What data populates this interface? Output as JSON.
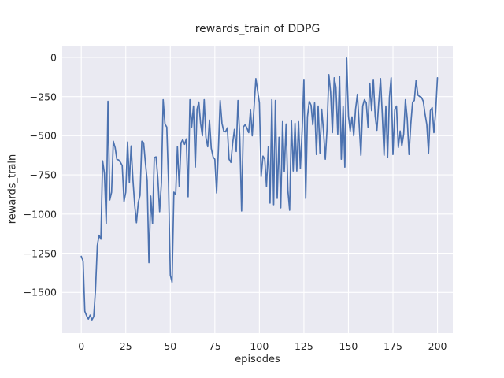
{
  "figure": {
    "title": "rewards_train of DDPG",
    "xlabel": "episodes",
    "ylabel": "rewards_train"
  },
  "colors": {
    "figure_background": "#ffffff",
    "axes_background": "#eaeaf2",
    "gridline": "#ffffff",
    "line": "#4c72b0",
    "text": "#262626"
  },
  "chart_data": {
    "type": "line",
    "title": "rewards_train of DDPG",
    "xlabel": "episodes",
    "ylabel": "rewards_train",
    "legend": "none",
    "grid": "on",
    "xlim": [
      -10.7,
      208.6
    ],
    "ylim": [
      -1760,
      75
    ],
    "xticks": [
      0,
      25,
      50,
      75,
      100,
      125,
      150,
      175,
      200
    ],
    "xtick_labels": [
      "0",
      "25",
      "50",
      "75",
      "100",
      "125",
      "150",
      "175",
      "200"
    ],
    "yticks": [
      0,
      -250,
      -500,
      -750,
      -1000,
      -1250,
      -1500
    ],
    "ytick_labels": [
      "0",
      "−250",
      "−500",
      "−750",
      "−1000",
      "−1250",
      "−1500"
    ],
    "x_start": 0,
    "x_step": 1,
    "series": [
      {
        "name": "rewards_train",
        "values": [
          -1270,
          -1300,
          -1620,
          -1650,
          -1670,
          -1645,
          -1675,
          -1655,
          -1480,
          -1200,
          -1135,
          -1160,
          -660,
          -740,
          -1060,
          -280,
          -910,
          -860,
          -535,
          -575,
          -650,
          -655,
          -670,
          -690,
          -920,
          -860,
          -540,
          -800,
          -565,
          -780,
          -945,
          -1055,
          -925,
          -880,
          -535,
          -545,
          -670,
          -785,
          -1310,
          -885,
          -1060,
          -640,
          -635,
          -775,
          -985,
          -800,
          -270,
          -425,
          -445,
          -800,
          -1390,
          -1435,
          -860,
          -875,
          -570,
          -825,
          -545,
          -525,
          -555,
          -520,
          -890,
          -270,
          -445,
          -310,
          -700,
          -330,
          -285,
          -420,
          -500,
          -270,
          -510,
          -570,
          -400,
          -580,
          -635,
          -650,
          -865,
          -580,
          -275,
          -420,
          -470,
          -475,
          -450,
          -650,
          -670,
          -550,
          -460,
          -600,
          -275,
          -510,
          -980,
          -445,
          -430,
          -450,
          -480,
          -335,
          -500,
          -320,
          -135,
          -210,
          -290,
          -760,
          -630,
          -650,
          -825,
          -570,
          -930,
          -270,
          -940,
          -275,
          -900,
          -510,
          -960,
          -410,
          -730,
          -425,
          -850,
          -975,
          -405,
          -725,
          -420,
          -725,
          -410,
          -710,
          -460,
          -140,
          -900,
          -380,
          -280,
          -305,
          -430,
          -290,
          -620,
          -310,
          -610,
          -330,
          -470,
          -650,
          -455,
          -110,
          -220,
          -480,
          -130,
          -190,
          -490,
          -120,
          -650,
          -310,
          -700,
          -5,
          -375,
          -470,
          -380,
          -500,
          -330,
          -235,
          -420,
          -625,
          -310,
          -270,
          -290,
          -445,
          -165,
          -340,
          -140,
          -375,
          -465,
          -290,
          -135,
          -360,
          -625,
          -310,
          -640,
          -255,
          -130,
          -620,
          -335,
          -310,
          -575,
          -470,
          -565,
          -490,
          -270,
          -390,
          -620,
          -430,
          -285,
          -275,
          -145,
          -240,
          -250,
          -255,
          -280,
          -360,
          -430,
          -610,
          -340,
          -320,
          -480,
          -345,
          -130
        ]
      }
    ]
  }
}
